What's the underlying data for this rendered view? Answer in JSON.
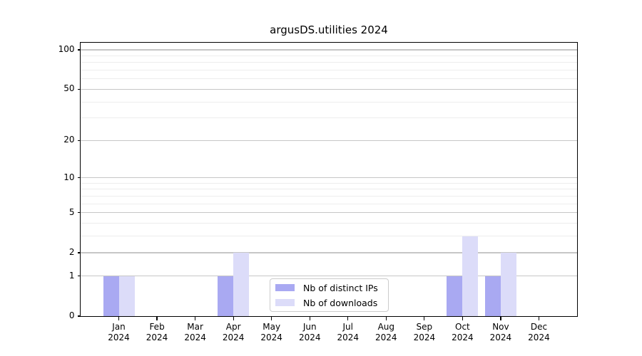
{
  "figure": {
    "title": "argusDS.utilities 2024"
  },
  "chart_data": {
    "type": "bar",
    "title": "argusDS.utilities 2024",
    "xlabel": "",
    "ylabel": "",
    "x_categories": [
      {
        "month": "Jan",
        "year": "2024"
      },
      {
        "month": "Feb",
        "year": "2024"
      },
      {
        "month": "Mar",
        "year": "2024"
      },
      {
        "month": "Apr",
        "year": "2024"
      },
      {
        "month": "May",
        "year": "2024"
      },
      {
        "month": "Jun",
        "year": "2024"
      },
      {
        "month": "Jul",
        "year": "2024"
      },
      {
        "month": "Aug",
        "year": "2024"
      },
      {
        "month": "Sep",
        "year": "2024"
      },
      {
        "month": "Oct",
        "year": "2024"
      },
      {
        "month": "Nov",
        "year": "2024"
      },
      {
        "month": "Dec",
        "year": "2024"
      }
    ],
    "series": [
      {
        "name": "Nb of distinct IPs",
        "color": "#a9a9f2",
        "values": [
          1,
          0,
          0,
          1,
          0,
          0,
          0,
          0,
          0,
          1,
          1,
          0
        ]
      },
      {
        "name": "Nb of downloads",
        "color": "#dcdcf9",
        "values": [
          1,
          0,
          0,
          2,
          0,
          0,
          0,
          0,
          0,
          3,
          2,
          0
        ]
      }
    ],
    "y_axis": {
      "scale": "log1p",
      "major_ticks": [
        0,
        1,
        2,
        5,
        10,
        20,
        50,
        100
      ],
      "minor_ticks": [
        3,
        4,
        6,
        7,
        8,
        9,
        30,
        40,
        60,
        70,
        80,
        90
      ],
      "range_max": 113.3
    },
    "legend": {
      "position": "lower center",
      "entries": [
        "Nb of distinct IPs",
        "Nb of downloads"
      ]
    },
    "grid": {
      "major_color": "#c6c6c6",
      "minor_color": "#ededed"
    },
    "axis_color": "#000000"
  }
}
